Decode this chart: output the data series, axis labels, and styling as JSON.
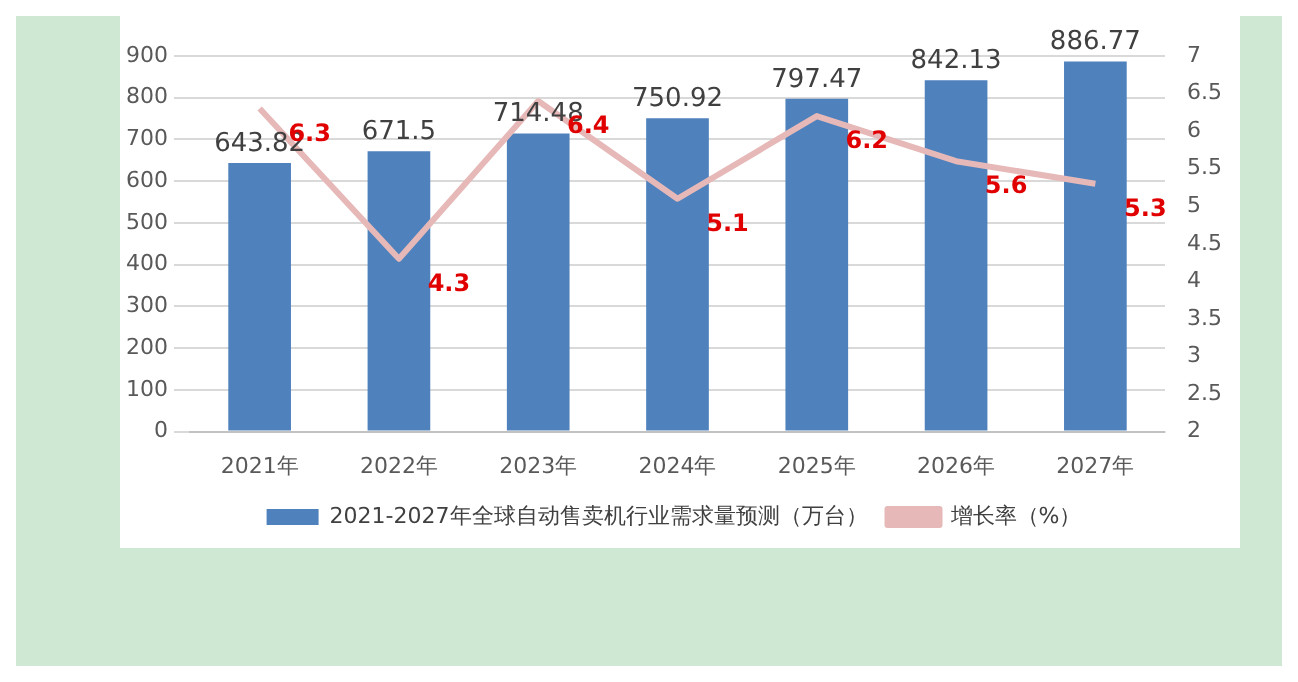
{
  "chart_data": {
    "type": "bar",
    "categories": [
      "2021年",
      "2022年",
      "2023年",
      "2024年",
      "2025年",
      "2026年",
      "2027年"
    ],
    "series": [
      {
        "name": "2021-2027年全球自动售卖机行业需求量预测（万台）",
        "color": "#4f81bd",
        "values": [
          643.82,
          671.5,
          714.48,
          750.92,
          797.47,
          842.13,
          886.77
        ]
      },
      {
        "name": "增长率（%）",
        "type": "line",
        "axis": "y2",
        "color": "#e6b9b8",
        "values": [
          6.3,
          4.3,
          6.4,
          5.1,
          6.2,
          5.6,
          5.3
        ]
      }
    ],
    "ylim": [
      0,
      900
    ],
    "yticks": [
      0,
      100,
      200,
      300,
      400,
      500,
      600,
      700,
      800,
      900
    ],
    "y2lim": [
      2,
      7
    ],
    "y2ticks": [
      2,
      2.5,
      3,
      3.5,
      4,
      4.5,
      5,
      5.5,
      6,
      6.5,
      7
    ],
    "grid": "y",
    "legend": "bottom",
    "data_labels": true,
    "marker": "none"
  }
}
